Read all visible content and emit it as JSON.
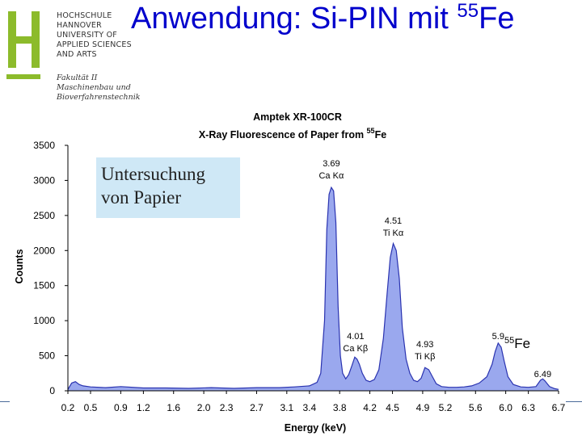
{
  "slide": {
    "title_main": "Anwendung: Si-PIN mit ",
    "title_sup": "55",
    "title_end": "Fe"
  },
  "logo": {
    "lines": [
      "HOCHSCHULE",
      "HANNOVER",
      "UNIVERSITY OF",
      "APPLIED SCIENCES",
      "AND ARTS"
    ],
    "faculty": [
      "Fakultät II",
      "Maschinenbau und",
      "Bioverfahrenstechnik"
    ],
    "color": "#8cbb2b"
  },
  "note_box": {
    "line1": "Untersuchung",
    "line2": "von Papier"
  },
  "fe_label": {
    "sup": "55",
    "text": "Fe"
  },
  "chart_data": {
    "type": "area",
    "title_line1": "Amptek XR-100CR",
    "title_line2_main": "X-Ray Fluorescence of Paper from ",
    "title_line2_sup": "55",
    "title_line2_end": "Fe",
    "xlabel": "Energy (keV)",
    "ylabel": "Counts",
    "x_ticks": [
      "0.2",
      "0.5",
      "0.9",
      "1.2",
      "1.6",
      "2.0",
      "2.3",
      "2.7",
      "3.1",
      "3.4",
      "3.8",
      "4.2",
      "4.5",
      "4.9",
      "5.2",
      "5.6",
      "6.0",
      "6.3",
      "6.7"
    ],
    "y_ticks": [
      0,
      500,
      1000,
      1500,
      2000,
      2500,
      3000,
      3500
    ],
    "xlim": [
      0.2,
      6.7
    ],
    "ylim": [
      0,
      3500
    ],
    "fill_color": "#9aa8ee",
    "line_color": "#2a33b0",
    "series": [
      {
        "x": [
          0.2,
          0.25,
          0.3,
          0.35,
          0.4,
          0.5,
          0.7,
          0.9,
          1.2,
          1.5,
          1.8,
          2.1,
          2.4,
          2.7,
          3.0,
          3.2,
          3.4,
          3.5,
          3.55,
          3.6,
          3.63,
          3.66,
          3.69,
          3.72,
          3.75,
          3.78,
          3.81,
          3.84,
          3.88,
          3.92,
          3.96,
          4.0,
          4.03,
          4.06,
          4.1,
          4.15,
          4.2,
          4.26,
          4.32,
          4.38,
          4.43,
          4.47,
          4.51,
          4.55,
          4.59,
          4.63,
          4.68,
          4.73,
          4.78,
          4.83,
          4.88,
          4.93,
          4.98,
          5.03,
          5.08,
          5.15,
          5.25,
          5.35,
          5.45,
          5.55,
          5.65,
          5.75,
          5.82,
          5.86,
          5.9,
          5.94,
          5.98,
          6.03,
          6.1,
          6.2,
          6.3,
          6.4,
          6.46,
          6.49,
          6.52,
          6.58,
          6.65,
          6.7
        ],
        "y": [
          20,
          110,
          130,
          90,
          70,
          55,
          45,
          60,
          40,
          40,
          35,
          45,
          35,
          45,
          45,
          55,
          70,
          120,
          250,
          1000,
          2300,
          2800,
          2900,
          2850,
          2400,
          1200,
          500,
          250,
          170,
          230,
          350,
          480,
          450,
          380,
          250,
          150,
          130,
          160,
          300,
          750,
          1400,
          1900,
          2100,
          2000,
          1600,
          900,
          450,
          250,
          150,
          130,
          180,
          330,
          300,
          200,
          100,
          60,
          50,
          50,
          55,
          70,
          110,
          200,
          380,
          560,
          680,
          620,
          420,
          200,
          90,
          55,
          50,
          60,
          150,
          170,
          140,
          60,
          30,
          20
        ]
      }
    ],
    "peaks": [
      {
        "energy": "3.69",
        "label": "Ca Kα"
      },
      {
        "energy": "4.51",
        "label": "Ti Kα"
      },
      {
        "energy": "4.01",
        "label": "Ca Kβ"
      },
      {
        "energy": "4.93",
        "label": "Ti Kβ"
      },
      {
        "energy": "5.9",
        "label": ""
      },
      {
        "energy": "6.49",
        "label": ""
      }
    ],
    "grid": false,
    "legend": "none"
  }
}
